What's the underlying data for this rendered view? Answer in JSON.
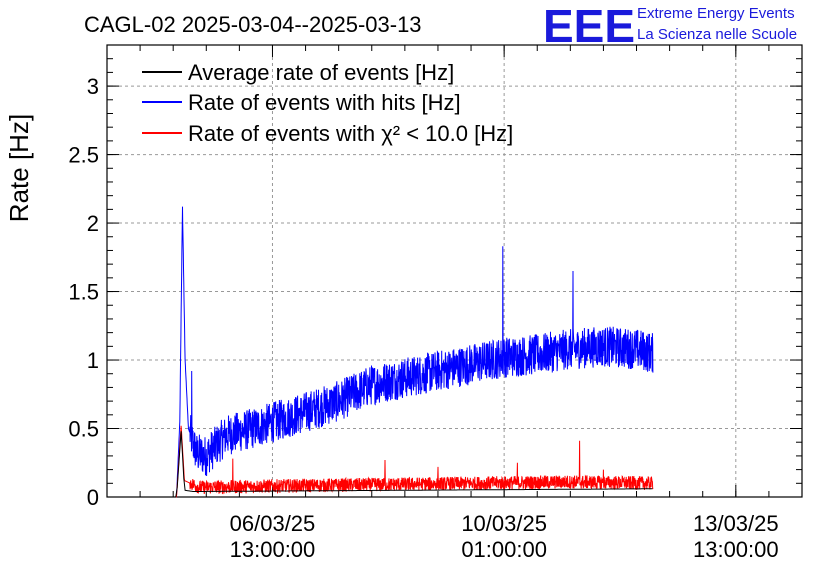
{
  "chart_data": {
    "type": "line",
    "title": "CAGL-02 2025-03-04--2025-03-13",
    "ylabel": "Rate [Hz]",
    "xlabel": "",
    "ylim": [
      0,
      3.3
    ],
    "y_ticks": [
      "0",
      "0.5",
      "1",
      "1.5",
      "2",
      "2.5",
      "3"
    ],
    "y_tick_values": [
      0,
      0.5,
      1,
      1.5,
      2,
      2.5,
      3
    ],
    "x_ticks": [
      {
        "date": "06/03/25",
        "time": "13:00:00"
      },
      {
        "date": "10/03/25",
        "time": "01:00:00"
      },
      {
        "date": "13/03/25",
        "time": "13:00:00"
      }
    ],
    "grid": true,
    "legend_position": "top-left",
    "series": [
      {
        "name": "Average rate of events [Hz]",
        "color": "#000000",
        "points": [
          [
            0.0,
            0
          ],
          [
            1.05,
            0
          ],
          [
            1.12,
            0.48
          ],
          [
            1.17,
            0.05
          ],
          [
            1.3,
            0.04
          ],
          [
            8.25,
            0.06
          ]
        ]
      },
      {
        "name": "Rate of events with hits [Hz]",
        "color": "#0000ff",
        "points": [
          [
            0.0,
            0
          ],
          [
            1.05,
            0
          ],
          [
            1.1,
            0.55
          ],
          [
            1.14,
            2.12
          ],
          [
            1.18,
            1.0
          ],
          [
            1.23,
            0.5
          ],
          [
            1.35,
            0.32
          ],
          [
            1.5,
            0.3
          ],
          [
            1.8,
            0.45
          ],
          [
            2.2,
            0.5
          ],
          [
            2.6,
            0.56
          ],
          [
            3.0,
            0.62
          ],
          [
            3.5,
            0.7
          ],
          [
            4.0,
            0.82
          ],
          [
            4.5,
            0.87
          ],
          [
            5.0,
            0.92
          ],
          [
            5.5,
            0.97
          ],
          [
            6.0,
            1.02
          ],
          [
            6.5,
            1.04
          ],
          [
            7.0,
            1.08
          ],
          [
            7.5,
            1.1
          ],
          [
            8.0,
            1.08
          ],
          [
            8.25,
            1.05
          ]
        ],
        "noise_band": 0.15,
        "spikes": [
          [
            1.28,
            0.92
          ],
          [
            5.98,
            1.83
          ],
          [
            7.04,
            1.65
          ]
        ]
      },
      {
        "name": "Rate of events with χ² < 10.0 [Hz]",
        "color": "#ff0000",
        "points": [
          [
            0.0,
            0
          ],
          [
            1.05,
            0
          ],
          [
            1.12,
            0.52
          ],
          [
            1.17,
            0.12
          ],
          [
            1.4,
            0.07
          ],
          [
            2.5,
            0.08
          ],
          [
            4.0,
            0.09
          ],
          [
            5.5,
            0.1
          ],
          [
            7.0,
            0.11
          ],
          [
            8.25,
            0.1
          ]
        ],
        "noise_band": 0.05,
        "spikes": [
          [
            1.9,
            0.28
          ],
          [
            4.2,
            0.27
          ],
          [
            5.0,
            0.22
          ],
          [
            6.2,
            0.25
          ],
          [
            7.14,
            0.41
          ],
          [
            7.5,
            0.2
          ]
        ]
      }
    ]
  },
  "logo": {
    "letters": "EEE",
    "line1": "Extreme Energy Events",
    "line2": "La Scienza nelle Scuole"
  }
}
